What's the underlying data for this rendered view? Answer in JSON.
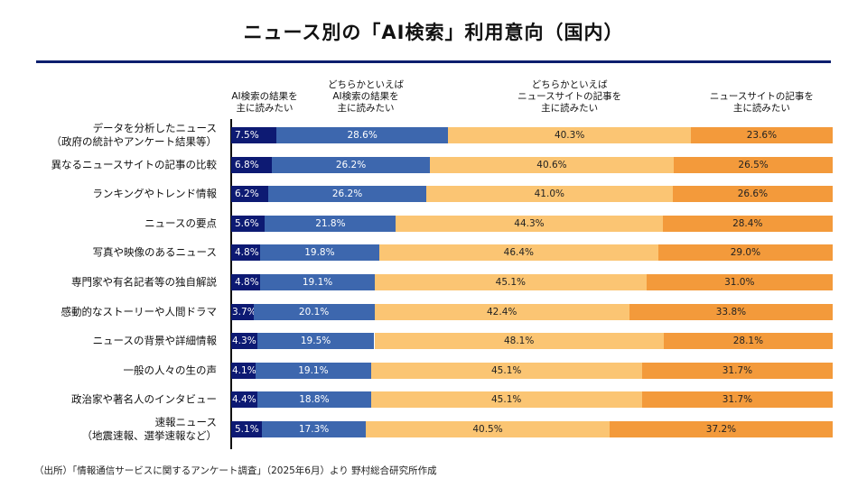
{
  "title": "ニュース別の「AI検索」利用意向（国内）",
  "footer": "（出所）「情報通信サービスに関するアンケート調査」（2025年6月）より 野村総合研究所作成",
  "colors": {
    "rule": "#0c1f6e",
    "series": [
      "#0d1a73",
      "#3d67ae",
      "#fbc573",
      "#f39a3b"
    ],
    "label_text": [
      "#ffffff",
      "#ffffff",
      "#222222",
      "#222222"
    ]
  },
  "chart_data": {
    "type": "bar",
    "orientation": "horizontal",
    "stacked": true,
    "normalized_percent": true,
    "title": "ニュース別の「AI検索」利用意向（国内）",
    "xlabel": "",
    "ylabel": "",
    "xlim": [
      0,
      100
    ],
    "grid": false,
    "legend_position": "top",
    "legend": [
      [
        "AI検索の結果を",
        "主に読みたい"
      ],
      [
        "どちらかといえば",
        "AI検索の結果を",
        "主に読みたい"
      ],
      [
        "どちらかといえば",
        "ニュースサイトの記事を",
        "主に読みたい"
      ],
      [
        "ニュースサイトの記事を",
        "主に読みたい"
      ]
    ],
    "categories": [
      [
        "データを分析したニュース",
        "（政府の統計やアンケート結果等）"
      ],
      [
        "異なるニュースサイトの記事の比較"
      ],
      [
        "ランキングやトレンド情報"
      ],
      [
        "ニュースの要点"
      ],
      [
        "写真や映像のあるニュース"
      ],
      [
        "専門家や有名記者等の独自解説"
      ],
      [
        "感動的なストーリーや人間ドラマ"
      ],
      [
        "ニュースの背景や詳細情報"
      ],
      [
        "一般の人々の生の声"
      ],
      [
        "政治家や著名人のインタビュー"
      ],
      [
        "速報ニュース",
        "（地震速報、選挙速報など）"
      ]
    ],
    "series": [
      {
        "name": "AI検索の結果を主に読みたい",
        "values": [
          7.5,
          6.8,
          6.2,
          5.6,
          4.8,
          4.8,
          3.7,
          4.3,
          4.1,
          4.4,
          5.1
        ]
      },
      {
        "name": "どちらかといえばAI検索の結果を主に読みたい",
        "values": [
          28.6,
          26.2,
          26.2,
          21.8,
          19.8,
          19.1,
          20.1,
          19.5,
          19.1,
          18.8,
          17.3
        ]
      },
      {
        "name": "どちらかといえばニュースサイトの記事を主に読みたい",
        "values": [
          40.3,
          40.6,
          41.0,
          44.3,
          46.4,
          45.1,
          42.4,
          48.1,
          45.1,
          45.1,
          40.5
        ]
      },
      {
        "name": "ニュースサイトの記事を主に読みたい",
        "values": [
          23.6,
          26.5,
          26.6,
          28.4,
          29.0,
          31.0,
          33.8,
          28.1,
          31.7,
          31.7,
          37.2
        ]
      }
    ],
    "value_suffix": "%"
  }
}
